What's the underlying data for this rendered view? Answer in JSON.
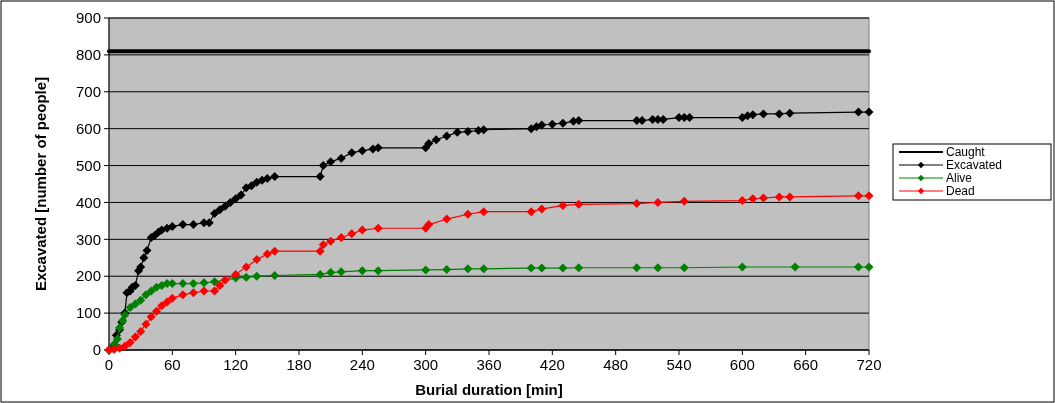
{
  "chart_data": {
    "type": "line",
    "xlabel": "Burial duration [min]",
    "ylabel": "Excavated [number of people]",
    "xlim": [
      0,
      720
    ],
    "xticks": [
      0,
      60,
      120,
      180,
      240,
      300,
      360,
      420,
      480,
      540,
      600,
      660,
      720
    ],
    "ylim": [
      0,
      900
    ],
    "yticks": [
      0,
      100,
      200,
      300,
      400,
      500,
      600,
      700,
      800,
      900
    ],
    "grid": "y",
    "legend": "right",
    "marker": "diamond",
    "line_style": "solid",
    "series": [
      {
        "name": "Caught",
        "color": "#000000",
        "marker": "none",
        "x": [
          0,
          720
        ],
        "values": [
          810,
          810
        ]
      },
      {
        "name": "Excavated",
        "color": "#000000",
        "x": [
          0,
          3,
          5,
          7,
          10,
          12,
          15,
          17,
          20,
          22,
          25,
          28,
          30,
          33,
          36,
          40,
          43,
          47,
          50,
          55,
          60,
          70,
          80,
          90,
          95,
          100,
          105,
          110,
          115,
          120,
          125,
          130,
          135,
          140,
          145,
          150,
          157,
          200,
          203,
          210,
          220,
          230,
          240,
          250,
          255,
          300,
          303,
          310,
          320,
          330,
          340,
          350,
          355,
          400,
          405,
          410,
          420,
          430,
          440,
          445,
          500,
          505,
          515,
          520,
          525,
          540,
          545,
          550,
          600,
          605,
          610,
          620,
          635,
          645,
          710,
          720
        ],
        "values": [
          0,
          5,
          15,
          40,
          55,
          75,
          100,
          155,
          160,
          170,
          175,
          215,
          225,
          250,
          270,
          305,
          310,
          320,
          325,
          330,
          335,
          340,
          340,
          345,
          345,
          370,
          380,
          390,
          400,
          410,
          420,
          440,
          445,
          455,
          460,
          465,
          470,
          470,
          500,
          510,
          520,
          535,
          540,
          545,
          548,
          548,
          560,
          570,
          580,
          590,
          592,
          595,
          597,
          600,
          605,
          610,
          612,
          615,
          620,
          622,
          622,
          622,
          625,
          625,
          625,
          630,
          630,
          630,
          630,
          635,
          638,
          640,
          640,
          642,
          645,
          645
        ]
      },
      {
        "name": "Alive",
        "color": "#008000",
        "x": [
          0,
          5,
          8,
          10,
          13,
          15,
          20,
          25,
          30,
          35,
          40,
          45,
          50,
          55,
          60,
          70,
          80,
          90,
          100,
          120,
          130,
          140,
          157,
          200,
          210,
          220,
          240,
          255,
          300,
          320,
          340,
          355,
          400,
          410,
          430,
          445,
          500,
          520,
          545,
          600,
          650,
          710,
          720
        ],
        "values": [
          0,
          15,
          30,
          60,
          80,
          95,
          115,
          125,
          135,
          150,
          160,
          170,
          175,
          180,
          180,
          180,
          180,
          182,
          185,
          195,
          197,
          200,
          202,
          205,
          210,
          212,
          215,
          215,
          217,
          218,
          220,
          220,
          222,
          222,
          222,
          223,
          223,
          223,
          223,
          225,
          225,
          225,
          225
        ]
      },
      {
        "name": "Dead",
        "color": "#ff0000",
        "x": [
          0,
          5,
          10,
          15,
          20,
          25,
          30,
          35,
          40,
          45,
          50,
          55,
          60,
          70,
          80,
          90,
          100,
          105,
          110,
          120,
          130,
          140,
          150,
          157,
          200,
          203,
          210,
          220,
          230,
          240,
          255,
          300,
          303,
          320,
          340,
          355,
          400,
          410,
          430,
          445,
          500,
          520,
          545,
          600,
          610,
          620,
          635,
          645,
          710,
          720
        ],
        "values": [
          0,
          2,
          5,
          10,
          20,
          35,
          50,
          70,
          90,
          105,
          120,
          130,
          140,
          150,
          155,
          160,
          160,
          175,
          190,
          205,
          225,
          245,
          260,
          268,
          268,
          285,
          295,
          305,
          315,
          325,
          330,
          330,
          340,
          355,
          368,
          375,
          375,
          382,
          392,
          395,
          397,
          400,
          403,
          405,
          410,
          412,
          415,
          415,
          418,
          418
        ]
      }
    ]
  }
}
